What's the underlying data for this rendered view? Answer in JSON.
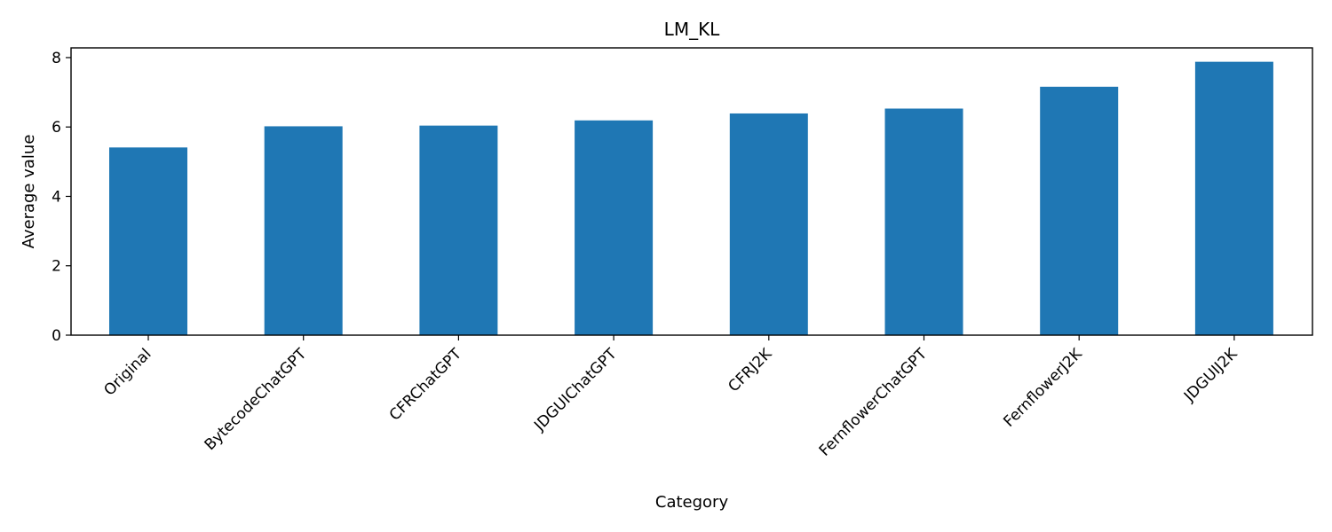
{
  "chart_data": {
    "type": "bar",
    "title": "LM_KL",
    "xlabel": "Category",
    "ylabel": "Average value",
    "categories": [
      "Original",
      "BytecodeChatGPT",
      "CFRChatGPT",
      "JDGUIChatGPT",
      "CFRJ2K",
      "FernflowerChatGPT",
      "FernflowerJ2K",
      "JDGUIJ2K"
    ],
    "values": [
      5.41,
      6.02,
      6.04,
      6.19,
      6.39,
      6.53,
      7.16,
      7.88
    ],
    "ylim": [
      0,
      8.28
    ],
    "yticks": [
      0,
      2,
      4,
      6,
      8
    ],
    "grid": false,
    "colors": {
      "bar": "#1f77b4"
    }
  }
}
